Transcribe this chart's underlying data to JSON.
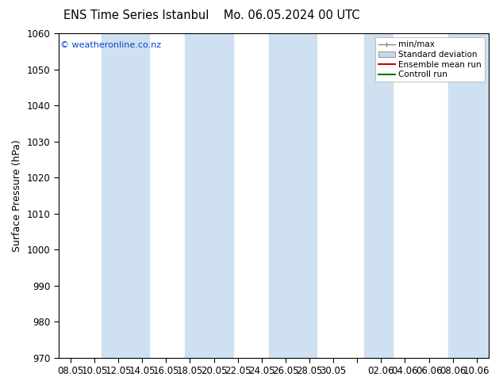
{
  "title_left": "ENS Time Series Istanbul",
  "title_right": "Mo. 06.05.2024 00 UTC",
  "ylabel": "Surface Pressure (hPa)",
  "ylim": [
    970,
    1060
  ],
  "yticks": [
    970,
    980,
    990,
    1000,
    1010,
    1020,
    1030,
    1040,
    1050,
    1060
  ],
  "xtick_labels": [
    "08.05",
    "10.05",
    "12.05",
    "14.05",
    "16.05",
    "18.05",
    "20.05",
    "22.05",
    "24.05",
    "26.05",
    "28.05",
    "30.05",
    "",
    "02.06",
    "04.06",
    "06.06",
    "08.06",
    "10.06"
  ],
  "watermark": "© weatheronline.co.nz",
  "bg_color": "#ffffff",
  "plot_bg_color": "#ffffff",
  "shading_color": "#cfe0f0",
  "legend_labels": [
    "min/max",
    "Standard deviation",
    "Ensemble mean run",
    "Controll run"
  ],
  "title_fontsize": 10.5,
  "axis_label_fontsize": 9,
  "tick_fontsize": 8.5
}
